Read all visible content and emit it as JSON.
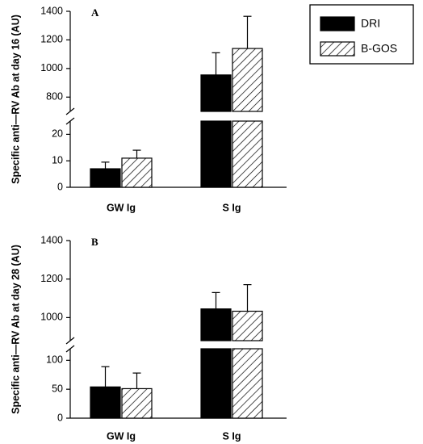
{
  "chart_data": [
    {
      "type": "bar",
      "panel_label": "A",
      "categories": [
        "GW Ig",
        "S Ig"
      ],
      "ylabel": "Specific anti—RV Ab at day 16 (AU)",
      "axis_break": true,
      "lower_ylim": [
        0,
        25
      ],
      "lower_ticks": [
        "0",
        "10",
        "20"
      ],
      "upper_ylim": [
        700,
        1400
      ],
      "upper_ticks": [
        "800",
        "1000",
        "1200",
        "1400"
      ],
      "series": [
        {
          "name": "DRI",
          "fill": "solid",
          "color": "#000000",
          "values": [
            7,
            955
          ],
          "errors": [
            2.5,
            155
          ]
        },
        {
          "name": "B-GOS",
          "fill": "hatched",
          "color": "#000000",
          "values": [
            11,
            1140
          ],
          "errors": [
            3,
            225
          ]
        }
      ]
    },
    {
      "type": "bar",
      "panel_label": "B",
      "categories": [
        "GW Ig",
        "S Ig"
      ],
      "ylabel": "Specific anti—RV Ab at day 28 (AU)",
      "axis_break": true,
      "lower_ylim": [
        0,
        120
      ],
      "lower_ticks": [
        "0",
        "50",
        "100"
      ],
      "upper_ylim": [
        880,
        1400
      ],
      "upper_ticks": [
        "1000",
        "1200",
        "1400"
      ],
      "series": [
        {
          "name": "DRI",
          "fill": "solid",
          "color": "#000000",
          "values": [
            54,
            1045
          ],
          "errors": [
            35,
            85
          ]
        },
        {
          "name": "B-GOS",
          "fill": "hatched",
          "color": "#000000",
          "values": [
            51,
            1033
          ],
          "errors": [
            27,
            138
          ]
        }
      ]
    }
  ],
  "legend": {
    "placement": "top-right",
    "items": [
      {
        "label": "DRI",
        "fill": "solid"
      },
      {
        "label": "B-GOS",
        "fill": "hatched"
      }
    ]
  }
}
